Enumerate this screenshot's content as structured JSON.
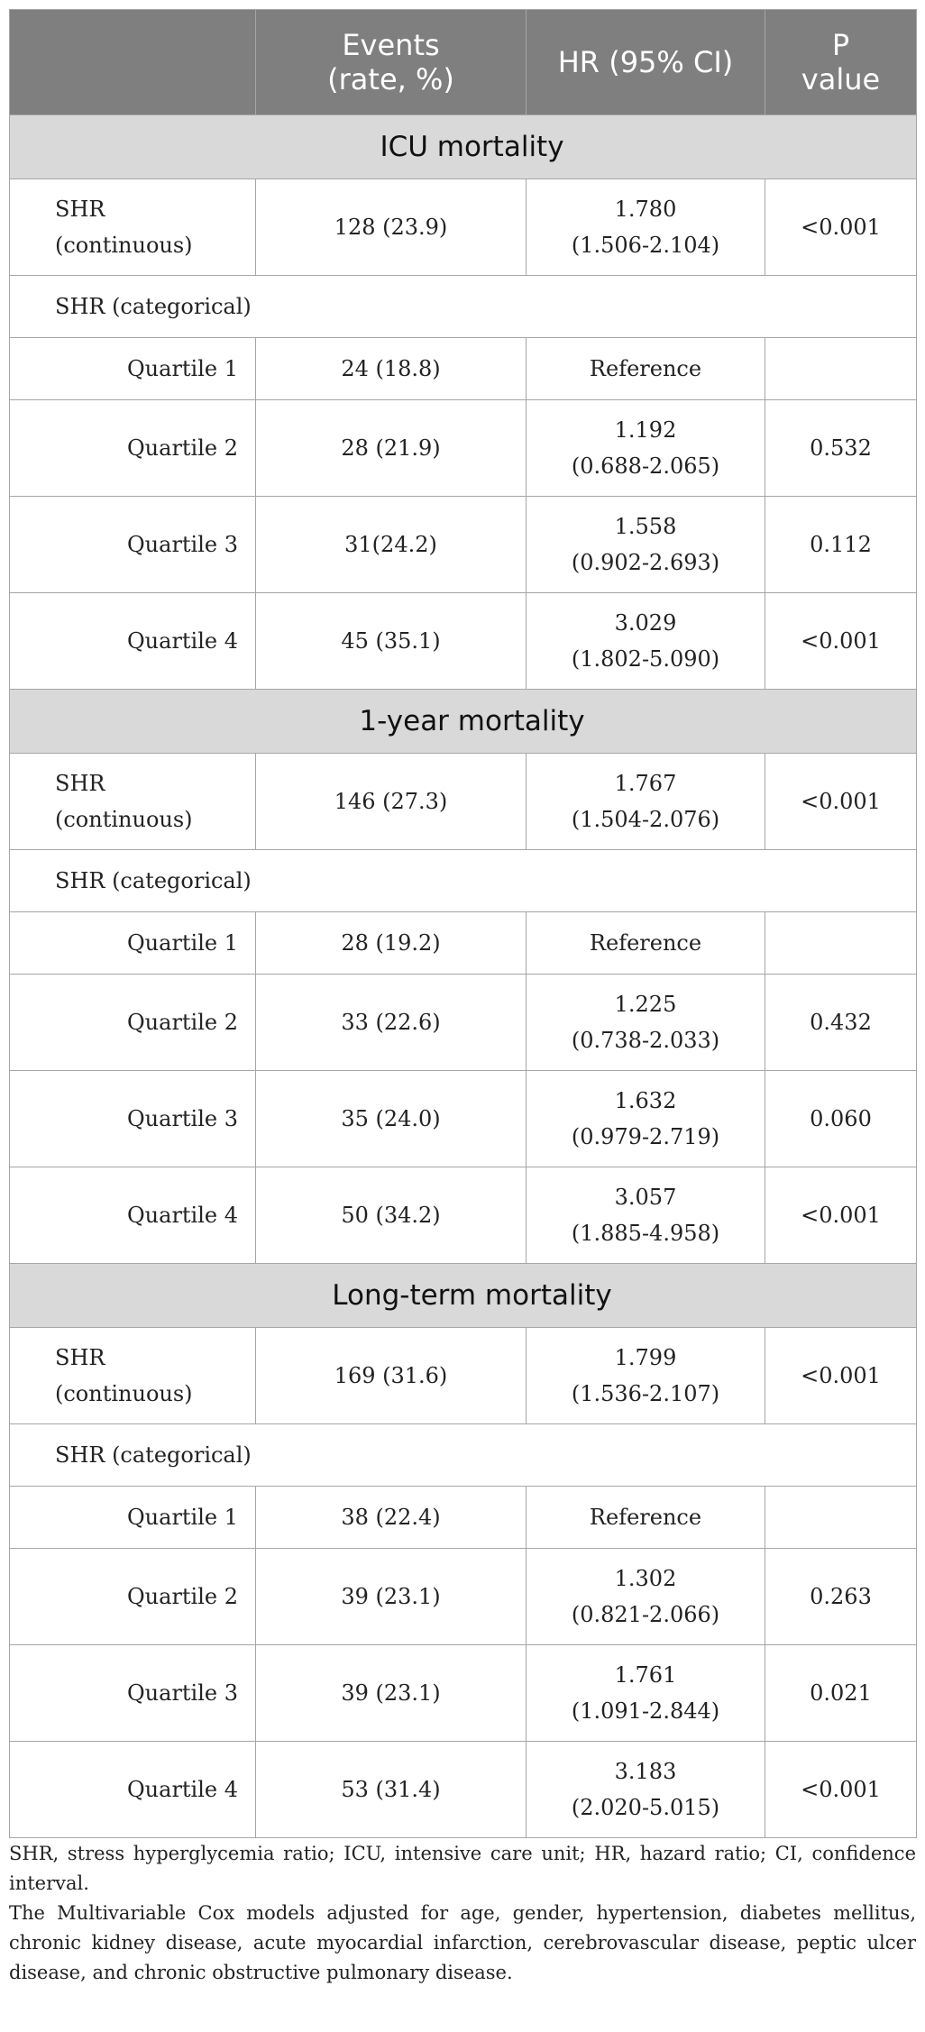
{
  "table": {
    "headers": [
      "",
      "Events (rate, %)",
      "HR (95% CI)",
      "P value"
    ],
    "header_lines": {
      "events": [
        "Events",
        "(rate, %)"
      ],
      "hr": [
        "HR (95% CI)"
      ],
      "p": [
        "P",
        "value"
      ]
    },
    "sections": [
      {
        "title": "ICU mortality",
        "continuous": {
          "label": [
            "SHR",
            "(continuous)"
          ],
          "events": "128 (23.9)",
          "hr": [
            "1.780",
            "(1.506-2.104)"
          ],
          "p": "<0.001"
        },
        "categorical_label": "SHR (categorical)",
        "quartiles": [
          {
            "label": "Quartile 1",
            "events": "24 (18.8)",
            "hr": [
              "Reference"
            ],
            "p": ""
          },
          {
            "label": "Quartile 2",
            "events": "28 (21.9)",
            "hr": [
              "1.192",
              "(0.688-2.065)"
            ],
            "p": "0.532"
          },
          {
            "label": "Quartile 3",
            "events": "31(24.2)",
            "hr": [
              "1.558",
              "(0.902-2.693)"
            ],
            "p": "0.112"
          },
          {
            "label": "Quartile 4",
            "events": "45 (35.1)",
            "hr": [
              "3.029",
              "(1.802-5.090)"
            ],
            "p": "<0.001"
          }
        ]
      },
      {
        "title": "1-year mortality",
        "continuous": {
          "label": [
            "SHR",
            "(continuous)"
          ],
          "events": "146 (27.3)",
          "hr": [
            "1.767",
            "(1.504-2.076)"
          ],
          "p": "<0.001"
        },
        "categorical_label": "SHR (categorical)",
        "quartiles": [
          {
            "label": "Quartile 1",
            "events": "28 (19.2)",
            "hr": [
              "Reference"
            ],
            "p": ""
          },
          {
            "label": "Quartile 2",
            "events": "33 (22.6)",
            "hr": [
              "1.225",
              "(0.738-2.033)"
            ],
            "p": "0.432"
          },
          {
            "label": "Quartile 3",
            "events": "35 (24.0)",
            "hr": [
              "1.632",
              "(0.979-2.719)"
            ],
            "p": "0.060"
          },
          {
            "label": "Quartile 4",
            "events": "50 (34.2)",
            "hr": [
              "3.057",
              "(1.885-4.958)"
            ],
            "p": "<0.001"
          }
        ]
      },
      {
        "title": "Long-term mortality",
        "continuous": {
          "label": [
            "SHR",
            "(continuous)"
          ],
          "events": "169 (31.6)",
          "hr": [
            "1.799",
            "(1.536-2.107)"
          ],
          "p": "<0.001"
        },
        "categorical_label": "SHR (categorical)",
        "quartiles": [
          {
            "label": "Quartile 1",
            "events": "38 (22.4)",
            "hr": [
              "Reference"
            ],
            "p": ""
          },
          {
            "label": "Quartile 2",
            "events": "39 (23.1)",
            "hr": [
              "1.302",
              "(0.821-2.066)"
            ],
            "p": "0.263"
          },
          {
            "label": "Quartile 3",
            "events": "39 (23.1)",
            "hr": [
              "1.761",
              "(1.091-2.844)"
            ],
            "p": "0.021"
          },
          {
            "label": "Quartile 4",
            "events": "53 (31.4)",
            "hr": [
              "3.183",
              "(2.020-5.015)"
            ],
            "p": "<0.001"
          }
        ]
      }
    ]
  },
  "footnotes": [
    "SHR, stress hyperglycemia ratio; ICU, intensive care unit; HR, hazard ratio; CI, confidence interval.",
    "The Multivariable Cox models adjusted for age, gender, hypertension, diabetes mellitus, chronic kidney disease, acute myocardial infarction, cerebrovascular disease, peptic ulcer disease, and chronic obstructive pulmonary disease."
  ],
  "colors": {
    "header_bg": "#7f7f7f",
    "section_bg": "#d9d9d9",
    "border": "#a6a6a6"
  }
}
